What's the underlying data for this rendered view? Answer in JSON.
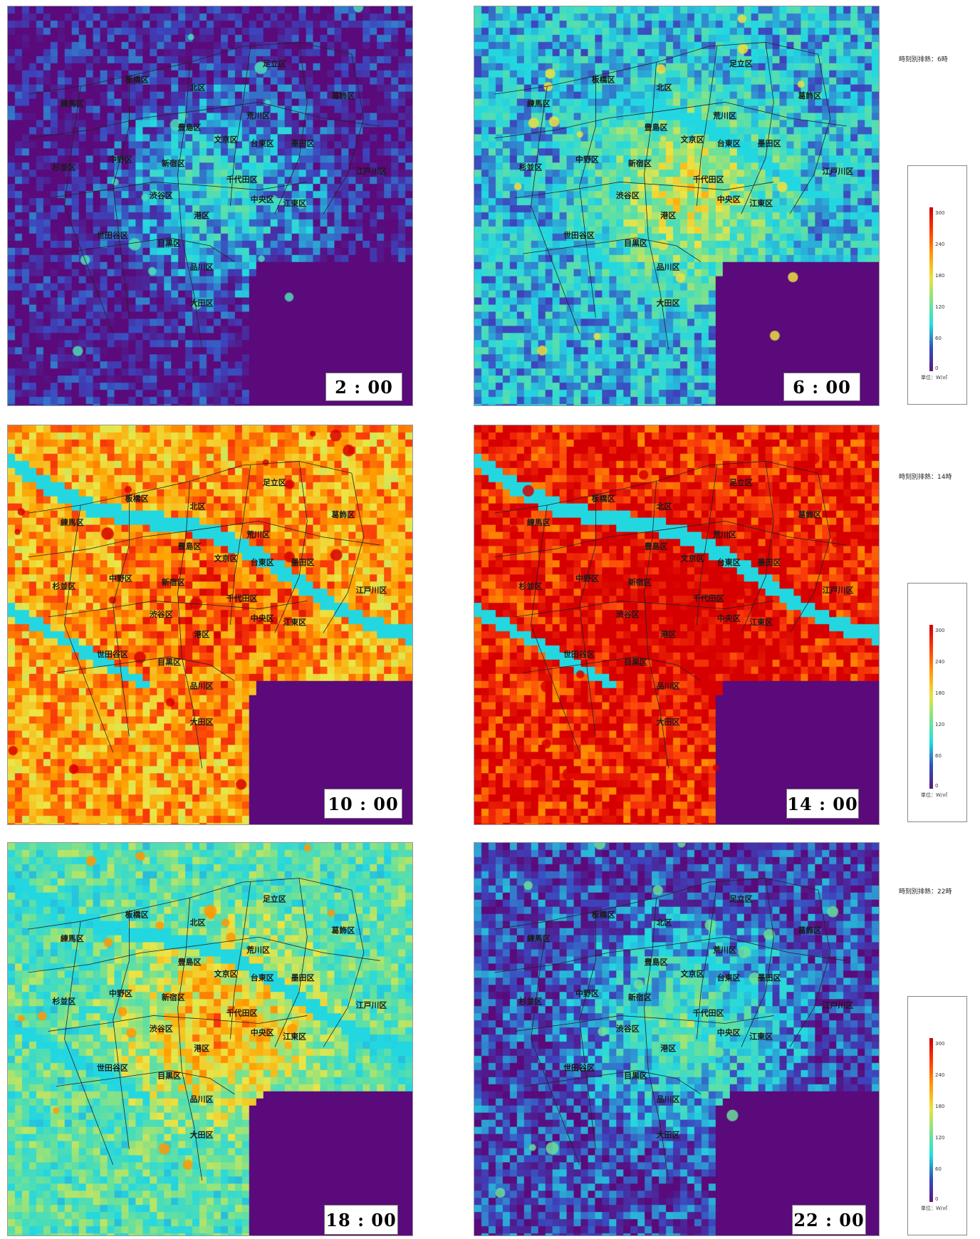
{
  "panels": [
    {
      "time": "2 : 00",
      "level": 0.05
    },
    {
      "time": "6 : 00",
      "level": 0.28
    },
    {
      "time": "10 : 00",
      "level": 0.74
    },
    {
      "time": "14 : 00",
      "level": 0.93
    },
    {
      "time": "18 : 00",
      "level": 0.42
    },
    {
      "time": "22 : 00",
      "level": 0.12
    }
  ],
  "captions": [
    "時刻別排熱：6時",
    "時刻別排熱：14時",
    "時刻別排熱：22時"
  ],
  "legend": {
    "ticks": [
      "300",
      "240",
      "180",
      "120",
      "60",
      "0"
    ],
    "unit": "単位：W/㎡"
  },
  "ward_labels": [
    "足立区",
    "板橋区",
    "北区",
    "葛飾区",
    "練馬区",
    "荒川区",
    "豊島区",
    "文京区",
    "台東区",
    "墨田区",
    "中野区",
    "杉並区",
    "新宿区",
    "千代田区",
    "江戸川区",
    "渋谷区",
    "中央区",
    "江東区",
    "港区",
    "世田谷区",
    "目黒区",
    "品川区",
    "大田区"
  ],
  "colors": {
    "water": "#5a0a7a",
    "bay": "#5a0a7a"
  }
}
